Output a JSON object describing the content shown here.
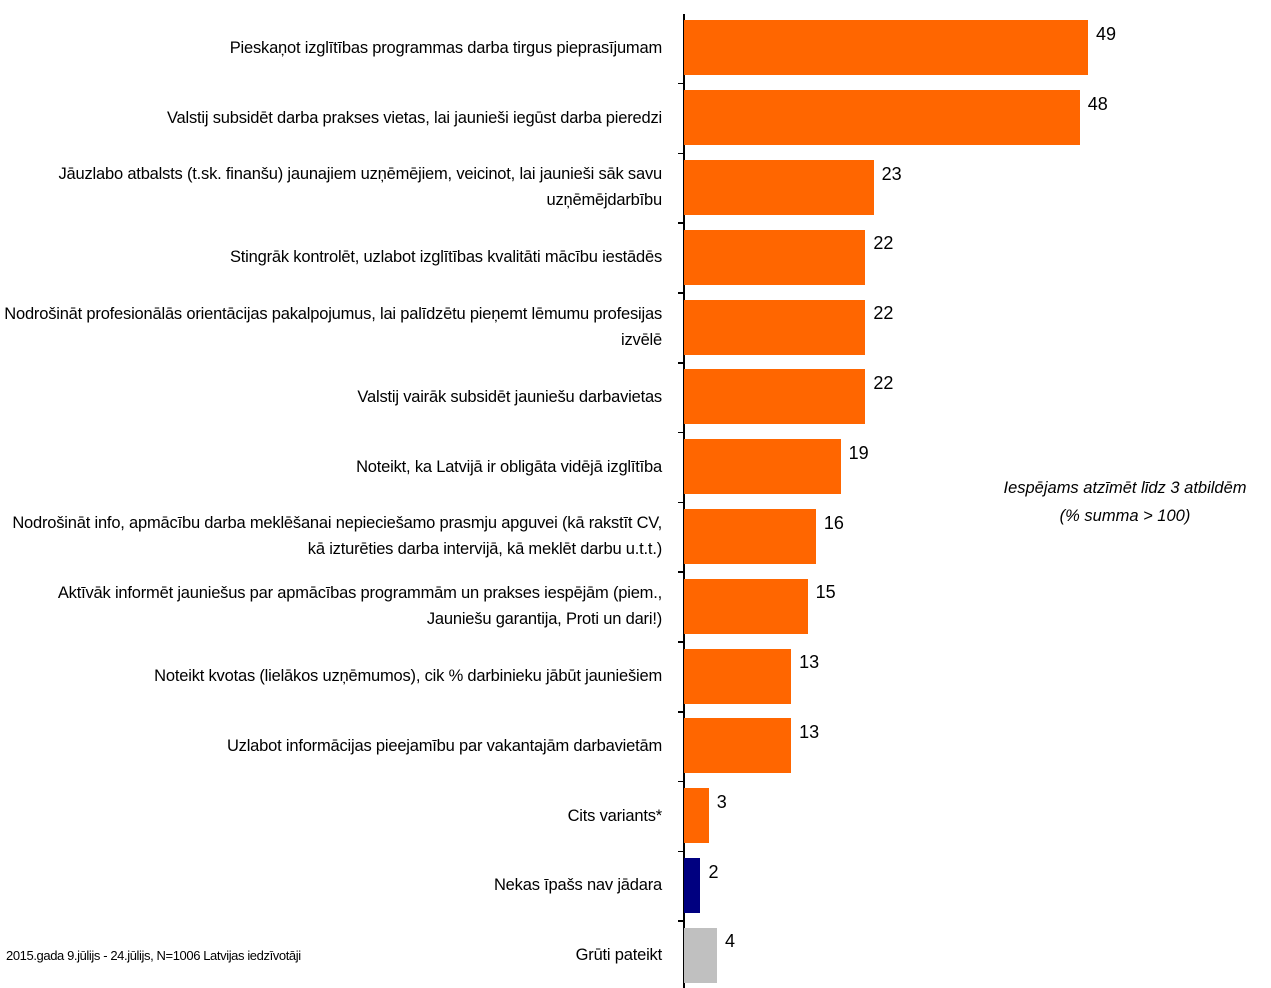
{
  "chart_data": {
    "type": "barh",
    "categories": [
      "Pieskaņot izglītības programmas darba tirgus pieprasījumam",
      "Valstij subsidēt darba prakses vietas, lai jaunieši iegūst darba pieredzi",
      "Jāuzlabo atbalsts (t.sk. finanšu) jaunajiem uzņēmējiem, veicinot, lai jaunieši sāk savu uzņēmējdarbību",
      "Stingrāk kontrolēt, uzlabot izglītības kvalitāti mācību iestādēs",
      "Nodrošināt profesionālās orientācijas pakalpojumus, lai palīdzētu pieņemt lēmumu profesijas izvēlē",
      "Valstij vairāk subsidēt jauniešu darbavietas",
      "Noteikt, ka Latvijā ir obligāta vidējā izglītība",
      "Nodrošināt info, apmācību darba meklēšanai nepieciešamo prasmju apguvei (kā rakstīt CV, kā izturēties darba intervijā, kā meklēt darbu u.t.t.)",
      "Aktīvāk informēt jauniešus par apmācības programmām un prakses iespējām (piem., Jauniešu garantija, Proti un dari!)",
      "Noteikt kvotas (lielākos uzņēmumos), cik % darbinieku jābūt jauniešiem",
      "Uzlabot informācijas pieejamību par vakantajām darbavietām",
      "Cits variants*",
      "Nekas īpašs nav jādara",
      "Grūti pateikt"
    ],
    "values": [
      49,
      48,
      23,
      22,
      22,
      22,
      19,
      16,
      15,
      13,
      13,
      3,
      2,
      4
    ],
    "colors": [
      "#ff6600",
      "#ff6600",
      "#ff6600",
      "#ff6600",
      "#ff6600",
      "#ff6600",
      "#ff6600",
      "#ff6600",
      "#ff6600",
      "#ff6600",
      "#ff6600",
      "#ff6600",
      "#000080",
      "#c0c0c0"
    ],
    "note": [
      "Iespējams atzīmēt līdz 3 atbildēm",
      "(% summa > 100)"
    ],
    "source": "2015.gada 9.jūlijs - 24.jūlijs, N=1006 Latvijas iedzīvotāji"
  }
}
